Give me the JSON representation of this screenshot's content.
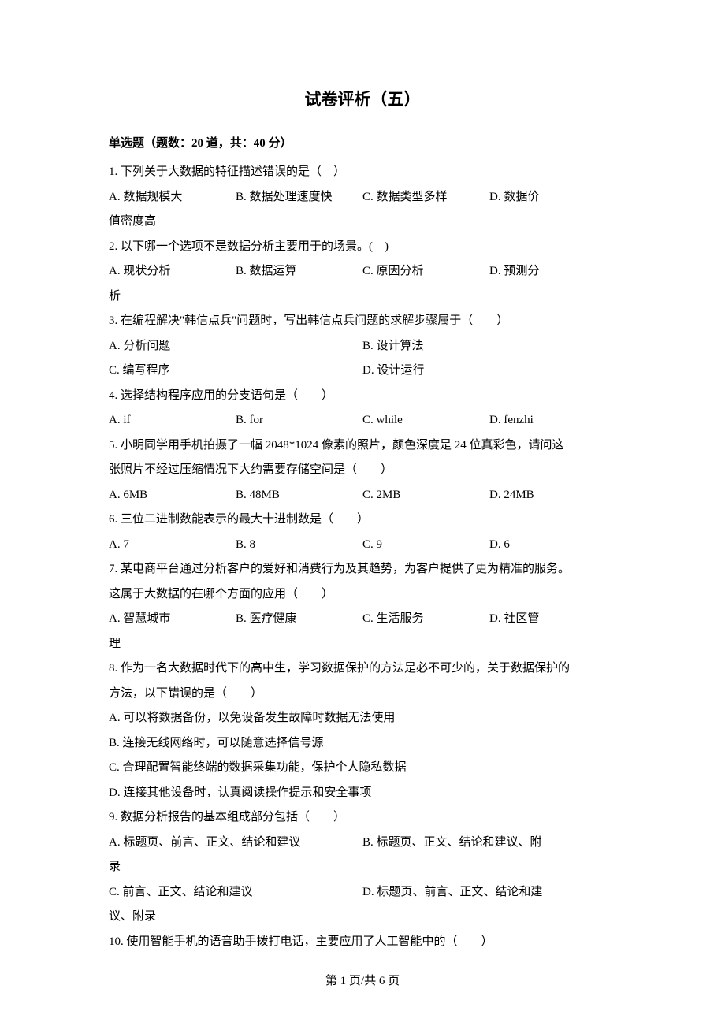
{
  "title": "试卷评析（五）",
  "section_header": "单选题（题数：20 道，共：40 分）",
  "questions": [
    {
      "num": "1.",
      "text": "下列关于大数据的特征描述错误的是（　）",
      "layout": "4col-wrap",
      "options": {
        "A": "A. 数据规模大",
        "B": "B. 数据处理速度快",
        "C": "C. 数据类型多样",
        "D_part1": "D. 数据价",
        "D_part2": "值密度高"
      }
    },
    {
      "num": "2.",
      "text": "以下哪一个选项不是数据分析主要用于的场景。(　)",
      "layout": "4col-wrap",
      "options": {
        "A": "A. 现状分析",
        "B": "B. 数据运算",
        "C": "C. 原因分析",
        "D_part1": "D. 预测分",
        "D_part2": "析"
      }
    },
    {
      "num": "3.",
      "text": "在编程解决\"韩信点兵\"问题时，写出韩信点兵问题的求解步骤属于（　　）",
      "layout": "2col",
      "options": {
        "A": "A. 分析问题",
        "B": "B. 设计算法",
        "C": "C. 编写程序",
        "D": "D. 设计运行"
      }
    },
    {
      "num": "4.",
      "text": "选择结构程序应用的分支语句是（　　）",
      "layout": "4col",
      "options": {
        "A": "A. if",
        "B": "B. for",
        "C": "C. while",
        "D": "D. fenzhi"
      }
    },
    {
      "num": "5.",
      "text_line1": "小明同学用手机拍摄了一幅 2048*1024 像素的照片，颜色深度是 24 位真彩色，请问这",
      "text_line2": "张照片不经过压缩情况下大约需要存储空间是（　　）",
      "layout": "4col",
      "options": {
        "A": "A. 6MB",
        "B": "B. 48MB",
        "C": "C. 2MB",
        "D": "D. 24MB"
      }
    },
    {
      "num": "6.",
      "text": "三位二进制数能表示的最大十进制数是（　　）",
      "layout": "4col",
      "options": {
        "A": "A. 7",
        "B": "B. 8",
        "C": "C. 9",
        "D": "D. 6"
      }
    },
    {
      "num": "7.",
      "text_line1": "某电商平台通过分析客户的爱好和消费行为及其趋势，为客户提供了更为精准的服务。",
      "text_line2": "这属于大数据的在哪个方面的应用（　　）",
      "layout": "4col-wrap",
      "options": {
        "A": "A. 智慧城市",
        "B": "B. 医疗健康",
        "C": "C. 生活服务",
        "D_part1": "D. 社区管",
        "D_part2": "理"
      }
    },
    {
      "num": "8.",
      "text_line1": "作为一名大数据时代下的高中生，学习数据保护的方法是必不可少的，关于数据保护的",
      "text_line2": "方法，以下错误的是（　　）",
      "layout": "1col",
      "options": {
        "A": "A. 可以将数据备份，以免设备发生故障时数据无法使用",
        "B": "B. 连接无线网络时，可以随意选择信号源",
        "C": "C. 合理配置智能终端的数据采集功能，保护个人隐私数据",
        "D": "D. 连接其他设备时，认真阅读操作提示和安全事项"
      }
    },
    {
      "num": "9.",
      "text": "数据分析报告的基本组成部分包括（　　）",
      "layout": "2col-wrap",
      "options": {
        "A": "A. 标题页、前言、正文、结论和建议",
        "B_part1": "B. 标题页、正文、结论和建议、附",
        "B_part2": "录",
        "C": "C. 前言、正文、结论和建议",
        "D_part1": "D. 标题页、前言、正文、结论和建",
        "D_part2": "议、附录"
      }
    },
    {
      "num": "10.",
      "text": "使用智能手机的语音助手拨打电话，主要应用了人工智能中的（　　）"
    }
  ],
  "footer": "第 1 页/共 6 页"
}
